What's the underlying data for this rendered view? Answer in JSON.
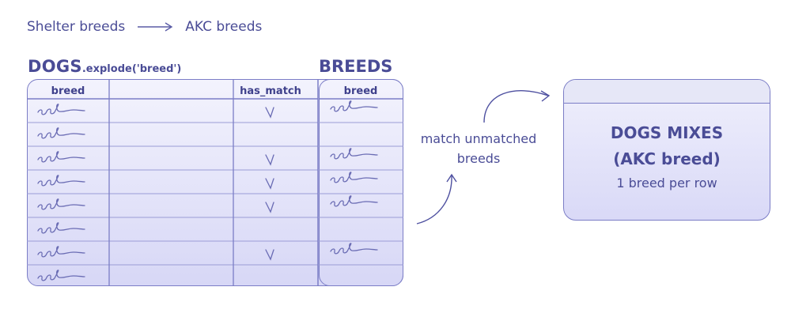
{
  "legend": {
    "from": "Shelter breeds",
    "to": "AKC breeds"
  },
  "dogs_table": {
    "title": "DOGS",
    "title_call": ".explode('breed')",
    "columns": [
      "breed",
      "",
      "has_match"
    ],
    "rows": [
      {
        "has_match": true
      },
      {
        "has_match": false
      },
      {
        "has_match": true
      },
      {
        "has_match": true
      },
      {
        "has_match": true
      },
      {
        "has_match": false
      },
      {
        "has_match": true
      },
      {
        "has_match": false
      }
    ]
  },
  "breeds_table": {
    "title": "BREEDS",
    "column": "breed",
    "rows": [
      true,
      false,
      true,
      true,
      true,
      false,
      true,
      false
    ]
  },
  "process_label_line1": "match unmatched",
  "process_label_line2": "breeds",
  "output_box": {
    "line1": "DOGS MIXES",
    "line2": "(AKC breed)",
    "line3": "1 breed per row"
  },
  "colors": {
    "ink": "#4a4c96",
    "border": "#7b7dc6",
    "fill_top": "#f3f3fd",
    "fill_bottom": "#d7d7f6"
  }
}
